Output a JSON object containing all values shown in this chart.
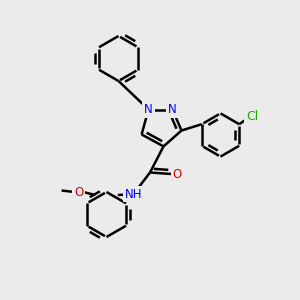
{
  "bg_color": "#ebebeb",
  "bond_color": "#000000",
  "bond_width": 1.8,
  "atom_colors": {
    "N": "#0000ee",
    "O": "#dd0000",
    "Cl": "#22aa00",
    "C": "#000000",
    "H": "#000000"
  },
  "font_size": 8.5,
  "fig_size": [
    3.0,
    3.0
  ],
  "dpi": 100
}
